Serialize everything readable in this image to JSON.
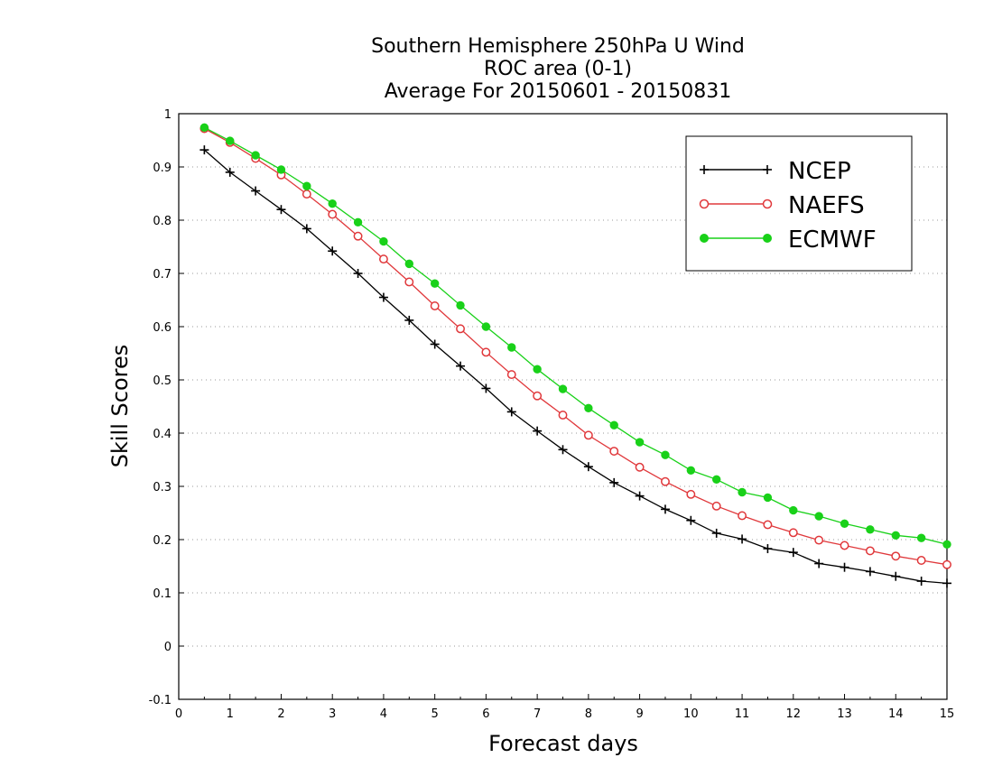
{
  "chart_data": {
    "type": "line",
    "title": [
      "Southern Hemisphere 250hPa U Wind",
      "ROC area (0-1)",
      "Average For 20150601 - 20150831"
    ],
    "xlabel": "Forecast days",
    "ylabel": "Skill Scores",
    "xlim": [
      0,
      15
    ],
    "ylim": [
      -0.1,
      1
    ],
    "xticks": [
      0,
      1,
      2,
      3,
      4,
      5,
      6,
      7,
      8,
      9,
      10,
      11,
      12,
      13,
      14,
      15
    ],
    "yticks": [
      -0.1,
      0,
      0.1,
      0.2,
      0.3,
      0.4,
      0.5,
      0.6,
      0.7,
      0.8,
      0.9,
      1
    ],
    "ytick_labels": [
      "-0.1",
      "0",
      "0.1",
      "0.2",
      "0.3",
      "0.4",
      "0.5",
      "0.6",
      "0.7",
      "0.8",
      "0.9",
      "1"
    ],
    "grid": "horizontal dotted",
    "legend_position": "top-right",
    "x": [
      0.5,
      1,
      1.5,
      2,
      2.5,
      3,
      3.5,
      4,
      4.5,
      5,
      5.5,
      6,
      6.5,
      7,
      7.5,
      8,
      8.5,
      9,
      9.5,
      10,
      10.5,
      11,
      11.5,
      12,
      12.5,
      13,
      13.5,
      14,
      14.5,
      15
    ],
    "series": [
      {
        "name": "NCEP",
        "color": "#000000",
        "marker": "plus",
        "values": [
          0.932,
          0.89,
          0.855,
          0.82,
          0.784,
          0.742,
          0.7,
          0.655,
          0.612,
          0.567,
          0.526,
          0.484,
          0.44,
          0.404,
          0.369,
          0.337,
          0.307,
          0.282,
          0.257,
          0.236,
          0.212,
          0.201,
          0.183,
          0.176,
          0.155,
          0.148,
          0.14,
          0.131,
          0.122,
          0.118
        ]
      },
      {
        "name": "NAEFS",
        "color": "#e0383b",
        "marker": "open-circle",
        "values": [
          0.972,
          0.946,
          0.916,
          0.885,
          0.849,
          0.811,
          0.77,
          0.727,
          0.684,
          0.639,
          0.596,
          0.552,
          0.51,
          0.47,
          0.434,
          0.396,
          0.366,
          0.336,
          0.309,
          0.285,
          0.263,
          0.245,
          0.228,
          0.213,
          0.199,
          0.189,
          0.179,
          0.169,
          0.161,
          0.153
        ]
      },
      {
        "name": "ECMWF",
        "color": "#19d119",
        "marker": "filled-circle",
        "values": [
          0.974,
          0.949,
          0.922,
          0.895,
          0.864,
          0.831,
          0.796,
          0.76,
          0.718,
          0.681,
          0.64,
          0.6,
          0.561,
          0.52,
          0.483,
          0.447,
          0.415,
          0.383,
          0.359,
          0.33,
          0.313,
          0.289,
          0.279,
          0.255,
          0.244,
          0.23,
          0.219,
          0.208,
          0.203,
          0.191
        ]
      }
    ]
  }
}
